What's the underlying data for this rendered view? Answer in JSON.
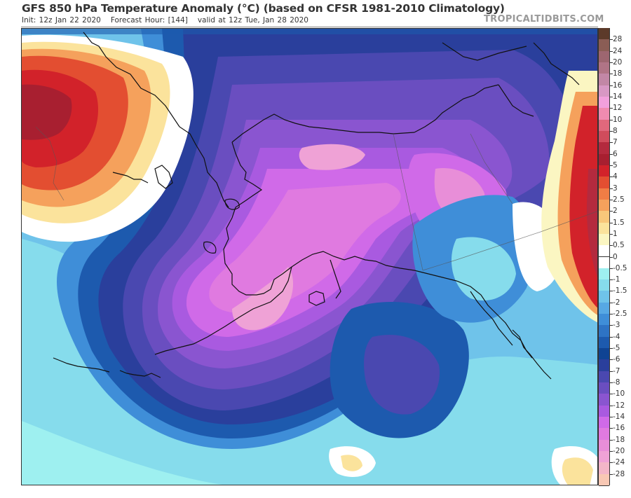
{
  "header": {
    "title": "GFS 850 hPa Temperature Anomaly (°C) (based on CFSR 1981-2010 Climatology)",
    "init": "Init: 12z Jan 22 2020",
    "forecast_hour": "Forecast Hour: [144]",
    "valid": "valid at 12z Tue, Jan 28 2020",
    "brand": "TROPICALTIDBITS.COM"
  },
  "map": {
    "region": "Alaska / Bering Sea / NE Pacific",
    "variable": "850 hPa Temperature Anomaly",
    "units": "°C",
    "features": [
      {
        "name": "Siberia warm anomaly",
        "approx_value": "+5 to +8"
      },
      {
        "name": "Alaska interior cold anomaly",
        "approx_value": "-14 to -20"
      },
      {
        "name": "Yukon / NW Canada cold anomaly",
        "approx_value": "-12 to -18"
      },
      {
        "name": "Gulf of Alaska cold anomaly",
        "approx_value": "-6 to -10"
      },
      {
        "name": "Western Canada warm anomaly",
        "approx_value": "+5 to +8"
      }
    ]
  },
  "legend": {
    "labels": [
      "28",
      "24",
      "20",
      "18",
      "16",
      "14",
      "12",
      "10",
      "8",
      "7",
      "6",
      "5",
      "4",
      "3",
      "2.5",
      "2",
      "1.5",
      "1",
      "0.5",
      "0",
      "-0.5",
      "-1",
      "-1.5",
      "-2",
      "-2.5",
      "-3",
      "-4",
      "-5",
      "-6",
      "-7",
      "-8",
      "-10",
      "-12",
      "-14",
      "-16",
      "-18",
      "-20",
      "-24",
      "-28"
    ],
    "colors": [
      "#5c3a2a",
      "#8a5d55",
      "#9d6670",
      "#b07486",
      "#c287a6",
      "#d898c4",
      "#f2a0dc",
      "#f08bb0",
      "#e0687c",
      "#d04c5c",
      "#b42a3e",
      "#a81f30",
      "#d2222a",
      "#e34e31",
      "#f07d45",
      "#f5a15c",
      "#f8c77a",
      "#fbe39c",
      "#fbf6c2",
      "#ffffff",
      "#ffffff",
      "#9ef0f0",
      "#86dcec",
      "#6fc3ea",
      "#57a8e4",
      "#3f8ed8",
      "#2e73c4",
      "#1d5aae",
      "#0f4393",
      "#2a3f9c",
      "#4a48b0",
      "#6a4ec0",
      "#8a55d0",
      "#a95ae0",
      "#d06ae8",
      "#e07ae0",
      "#e88ed8",
      "#efa2d6",
      "#f3b6c8",
      "#f8c8b4"
    ]
  },
  "chart_data": {
    "type": "heatmap",
    "title": "GFS 850 hPa Temperature Anomaly (°C) (based on CFSR 1981-2010 Climatology)",
    "subtitle": "Init: 12z Jan 22 2020 Forecast Hour: [144] valid at 12z Tue, Jan 28 2020",
    "colorbar_ticks": [
      28,
      24,
      20,
      18,
      16,
      14,
      12,
      10,
      8,
      7,
      6,
      5,
      4,
      3,
      2.5,
      2,
      1.5,
      1,
      0.5,
      0,
      -0.5,
      -1,
      -1.5,
      -2,
      -2.5,
      -3,
      -4,
      -5,
      -6,
      -7,
      -8,
      -10,
      -12,
      -14,
      -16,
      -18,
      -20,
      -24,
      -28
    ],
    "colorbar_range": [
      -28,
      28
    ],
    "legend_position": "right"
  }
}
